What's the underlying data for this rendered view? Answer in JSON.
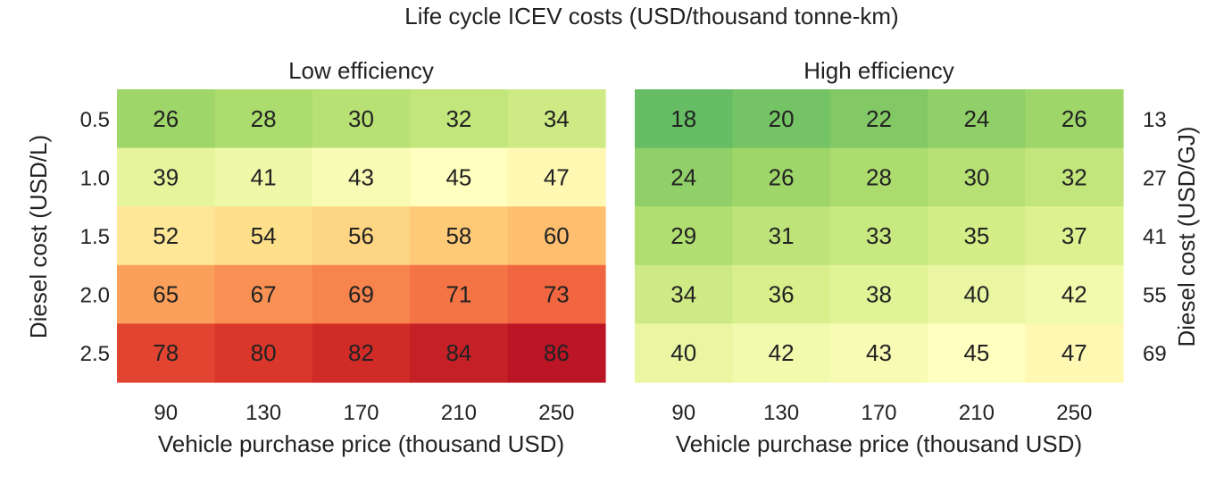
{
  "chart_data": {
    "type": "heatmap",
    "title": "Life cycle ICEV costs (USD/thousand tonne-km)",
    "colormap": "RdYlGn_r",
    "color_range": [
      0,
      90
    ],
    "left_ylabel": "Diesel cost (USD/L)",
    "right_ylabel": "Diesel cost (USD/GJ)",
    "row_labels": [
      "0.5",
      "1.0",
      "1.5",
      "2.0",
      "2.5"
    ],
    "right_row_labels": [
      "13",
      "27",
      "41",
      "55",
      "69"
    ],
    "panels": [
      {
        "title": "Low efficiency",
        "xlabel": "Vehicle purchase price (thousand USD)",
        "x_labels": [
          "90",
          "130",
          "170",
          "210",
          "250"
        ],
        "values": [
          [
            26,
            28,
            30,
            32,
            34
          ],
          [
            39,
            41,
            43,
            45,
            47
          ],
          [
            52,
            54,
            56,
            58,
            60
          ],
          [
            65,
            67,
            69,
            71,
            73
          ],
          [
            78,
            80,
            82,
            84,
            86
          ]
        ]
      },
      {
        "title": "High efficiency",
        "xlabel": "Vehicle purchase price (thousand USD)",
        "x_labels": [
          "90",
          "130",
          "170",
          "210",
          "250"
        ],
        "values": [
          [
            18,
            20,
            22,
            24,
            26
          ],
          [
            24,
            26,
            28,
            30,
            32
          ],
          [
            29,
            31,
            33,
            35,
            37
          ],
          [
            34,
            36,
            38,
            40,
            42
          ],
          [
            40,
            42,
            43,
            45,
            47
          ]
        ]
      }
    ]
  }
}
